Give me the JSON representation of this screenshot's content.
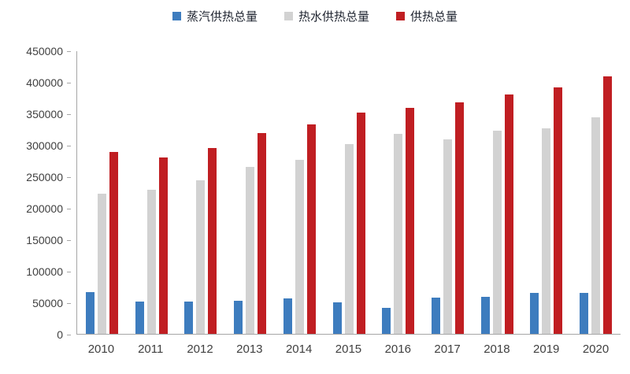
{
  "chart_data": {
    "type": "bar",
    "title": "",
    "categories": [
      "2010",
      "2011",
      "2012",
      "2013",
      "2014",
      "2015",
      "2016",
      "2017",
      "2018",
      "2019",
      "2020"
    ],
    "series": [
      {
        "name": "蒸汽供热总量",
        "color": "#3d7cbe",
        "values": [
          67000,
          52000,
          52000,
          53000,
          56000,
          50000,
          42000,
          58000,
          59000,
          65000,
          65000
        ]
      },
      {
        "name": "热水供热总量",
        "color": "#d2d2d2",
        "values": [
          223000,
          229000,
          244000,
          266000,
          277000,
          302000,
          318000,
          310000,
          323000,
          327000,
          345000
        ]
      },
      {
        "name": "供热总量",
        "color": "#c01e22",
        "values": [
          290000,
          281000,
          296000,
          320000,
          333000,
          352000,
          360000,
          368000,
          381000,
          392000,
          410000
        ]
      }
    ],
    "xlabel": "",
    "ylabel": "",
    "ylim": [
      0,
      450000
    ],
    "ytick_step": 50000,
    "legend_position": "top",
    "grid": false,
    "axis_color": "#a6a6a6"
  }
}
